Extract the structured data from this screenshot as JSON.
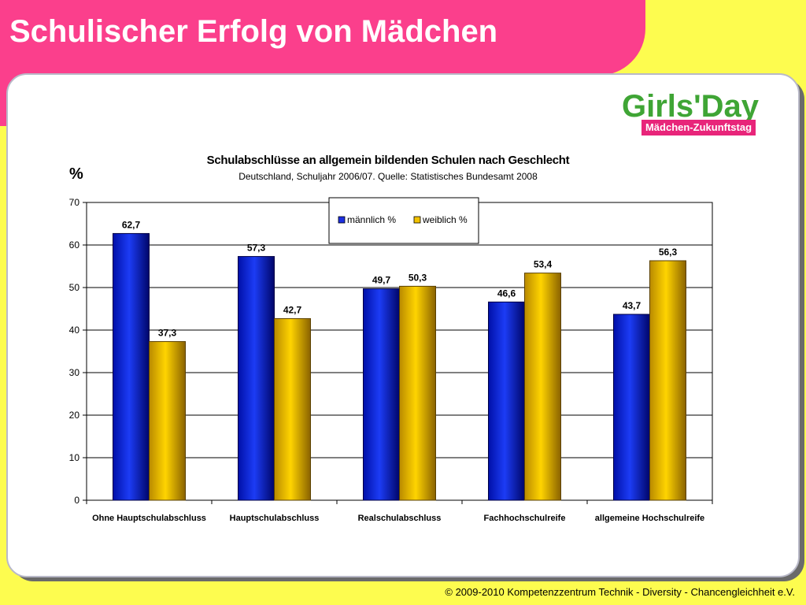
{
  "slide": {
    "title": "Schulischer Erfolg von Mädchen",
    "footer": "© 2009-2010  Kompetenzzentrum Technik - Diversity - Chancengleichheit  e.V."
  },
  "logo": {
    "wordmark": "Girls'Day",
    "tagline": "Mädchen-Zukunftstag"
  },
  "colors": {
    "pink": "#fb3f8c",
    "yellow": "#fdfc4f",
    "male": "#0a1fcc",
    "female": "#f2c200"
  },
  "chart_data": {
    "type": "bar",
    "title": "Schulabschlüsse an allgemein bildenden Schulen nach Geschlecht",
    "subtitle": "Deutschland, Schuljahr 2006/07. Quelle: Statistisches Bundesamt 2008",
    "ylabel": "%",
    "xlabel": "",
    "ylim": [
      0,
      70
    ],
    "yticks": [
      0,
      10,
      20,
      30,
      40,
      50,
      60,
      70
    ],
    "grid": true,
    "legend_position": "top-right",
    "categories": [
      "Ohne Hauptschulabschluss",
      "Hauptschulabschluss",
      "Realschulabschluss",
      "Fachhochschulreife",
      "allgemeine Hochschulreife"
    ],
    "series": [
      {
        "name": "männlich %",
        "values": [
          62.7,
          57.3,
          49.7,
          46.6,
          43.7
        ],
        "labels": [
          "62,7",
          "57,3",
          "49,7",
          "46,6",
          "43,7"
        ]
      },
      {
        "name": "weiblich %",
        "values": [
          37.3,
          42.7,
          50.3,
          53.4,
          56.3
        ],
        "labels": [
          "37,3",
          "42,7",
          "50,3",
          "53,4",
          "56,3"
        ]
      }
    ]
  }
}
